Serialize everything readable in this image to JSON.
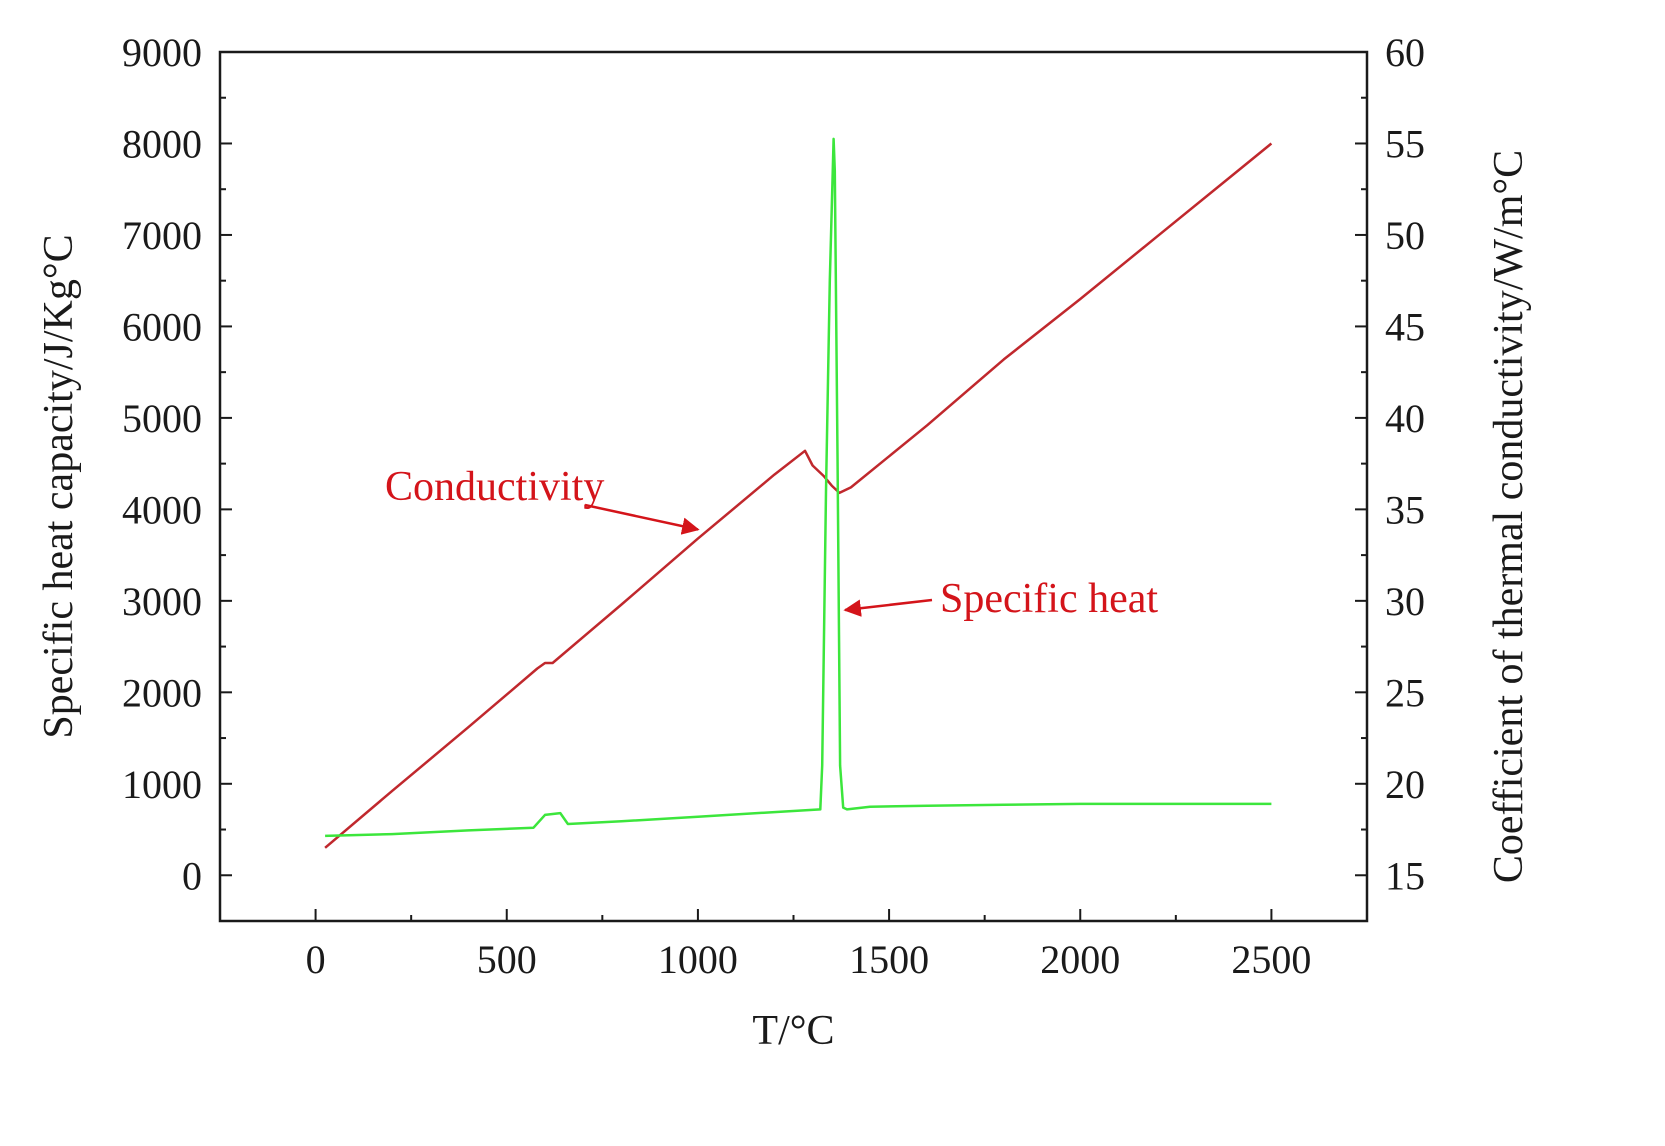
{
  "chart_data": {
    "type": "line",
    "title": "",
    "xlabel": "T/°C",
    "ylabel_left": "Specific heat capacity/J/Kg°C",
    "ylabel_right": "Coefficient of thermal conductivity/W/m°C",
    "xlim": [
      -250,
      2750
    ],
    "ylim_left": [
      -500,
      9000
    ],
    "ylim_right": [
      12.5,
      60
    ],
    "x_ticks": [
      0,
      500,
      1000,
      1500,
      2000,
      2500
    ],
    "y_ticks_left": [
      0,
      1000,
      2000,
      3000,
      4000,
      5000,
      6000,
      7000,
      8000,
      9000
    ],
    "y_ticks_right": [
      15,
      20,
      25,
      30,
      35,
      40,
      45,
      50,
      55,
      60
    ],
    "grid": false,
    "series": [
      {
        "name": "Conductivity",
        "axis": "right",
        "color": "#c0282d",
        "x": [
          25,
          200,
          400,
          580,
          600,
          620,
          800,
          1000,
          1200,
          1280,
          1300,
          1330,
          1350,
          1370,
          1400,
          1600,
          1800,
          2000,
          2200,
          2400,
          2500
        ],
        "y": [
          16.5,
          19.6,
          23.1,
          26.3,
          26.6,
          26.6,
          29.8,
          33.4,
          36.9,
          38.2,
          37.4,
          36.8,
          36.3,
          35.9,
          36.2,
          39.6,
          43.2,
          46.5,
          49.9,
          53.3,
          55.0
        ]
      },
      {
        "name": "Specific heat",
        "axis": "left",
        "color": "#3ce63c",
        "x": [
          25,
          200,
          400,
          570,
          600,
          640,
          660,
          800,
          1000,
          1200,
          1320,
          1325,
          1335,
          1345,
          1352,
          1355,
          1358,
          1365,
          1372,
          1380,
          1390,
          1450,
          1600,
          1800,
          2000,
          2200,
          2500
        ],
        "y": [
          430,
          450,
          490,
          520,
          660,
          680,
          560,
          590,
          640,
          690,
          720,
          1200,
          4200,
          6500,
          7600,
          8050,
          7700,
          4600,
          1200,
          740,
          720,
          750,
          760,
          770,
          780,
          780,
          780
        ]
      }
    ],
    "annotations": [
      {
        "text": "Conductivity",
        "color": "#d4141a",
        "points_to": {
          "x": 1000,
          "y": 33.9,
          "axis": "right"
        }
      },
      {
        "text": "Specific heat",
        "color": "#d4141a",
        "points_to": {
          "x": 1385,
          "y": 2900,
          "axis": "left"
        }
      }
    ]
  }
}
